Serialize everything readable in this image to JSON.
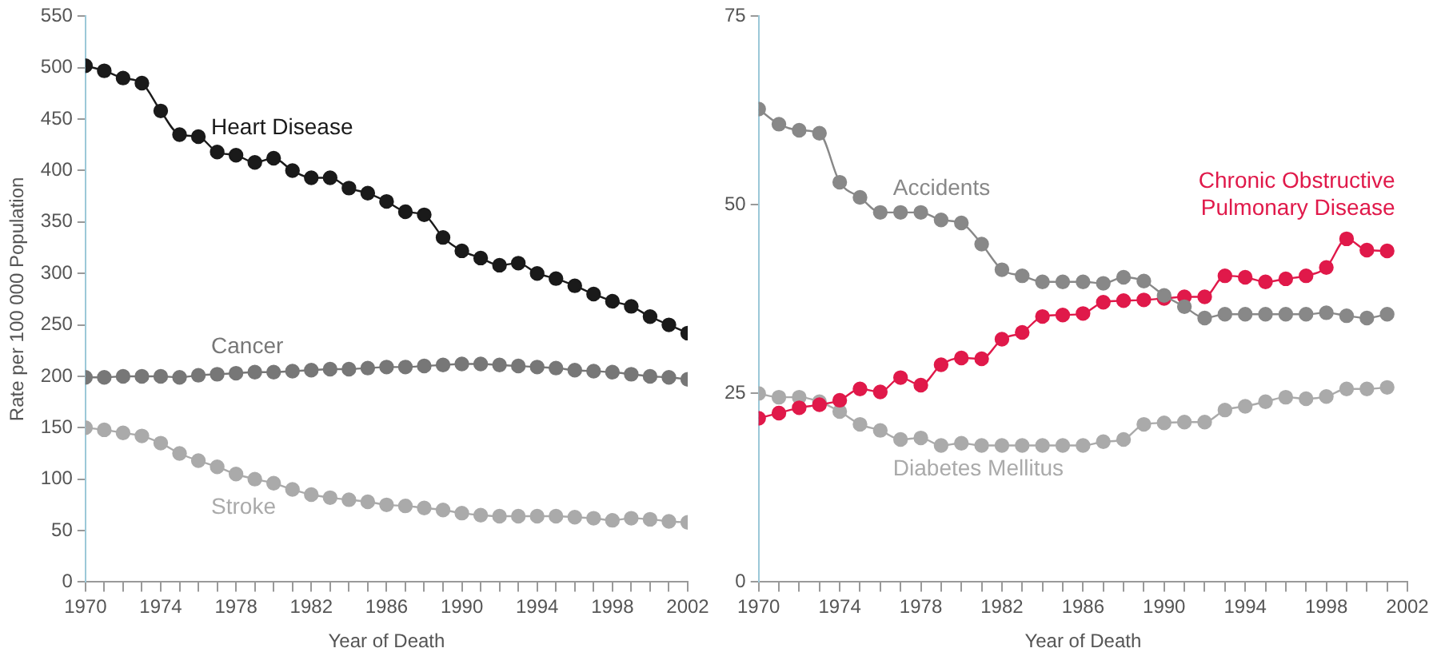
{
  "chart_data": [
    {
      "type": "line",
      "xlabel": "Year of Death",
      "ylabel": "Rate per 100 000 Population",
      "marker": "circle",
      "line_style": "solid",
      "grid": false,
      "legend": false,
      "x": [
        1970,
        1971,
        1972,
        1973,
        1974,
        1975,
        1976,
        1977,
        1978,
        1979,
        1980,
        1981,
        1982,
        1983,
        1984,
        1985,
        1986,
        1987,
        1988,
        1989,
        1990,
        1991,
        1992,
        1993,
        1994,
        1995,
        1996,
        1997,
        1998,
        1999,
        2000,
        2001,
        2002
      ],
      "xlim": [
        1970,
        2002
      ],
      "xticks": [
        1970,
        {
          "value": 1971,
          "label": null
        },
        {
          "value": 1972,
          "label": null
        },
        {
          "value": 1973,
          "label": null
        },
        1974,
        {
          "value": 1975,
          "label": null
        },
        {
          "value": 1976,
          "label": null
        },
        {
          "value": 1977,
          "label": null
        },
        1978,
        {
          "value": 1979,
          "label": null
        },
        {
          "value": 1980,
          "label": null
        },
        {
          "value": 1981,
          "label": null
        },
        1982,
        {
          "value": 1983,
          "label": null
        },
        {
          "value": 1984,
          "label": null
        },
        {
          "value": 1985,
          "label": null
        },
        1986,
        {
          "value": 1987,
          "label": null
        },
        {
          "value": 1988,
          "label": null
        },
        {
          "value": 1989,
          "label": null
        },
        1990,
        {
          "value": 1991,
          "label": null
        },
        {
          "value": 1992,
          "label": null
        },
        {
          "value": 1993,
          "label": null
        },
        1994,
        {
          "value": 1995,
          "label": null
        },
        {
          "value": 1996,
          "label": null
        },
        {
          "value": 1997,
          "label": null
        },
        1998,
        {
          "value": 1999,
          "label": null
        },
        {
          "value": 2000,
          "label": null
        },
        {
          "value": 2001,
          "label": null
        },
        2002
      ],
      "ylim": [
        0,
        550
      ],
      "yticks": [
        0,
        50,
        100,
        150,
        200,
        250,
        300,
        350,
        400,
        450,
        500,
        550
      ],
      "series": [
        {
          "name": "Heart Disease",
          "color": "#1a1a1a",
          "values": [
            502,
            497,
            490,
            485,
            458,
            435,
            433,
            418,
            415,
            408,
            412,
            400,
            393,
            393,
            383,
            378,
            370,
            360,
            357,
            335,
            322,
            315,
            308,
            310,
            300,
            295,
            288,
            280,
            273,
            268,
            258,
            250,
            242
          ]
        },
        {
          "name": "Cancer",
          "color": "#777777",
          "values": [
            199,
            199,
            200,
            200,
            200,
            199,
            201,
            202,
            203,
            204,
            204,
            205,
            206,
            207,
            207,
            208,
            209,
            209,
            210,
            211,
            212,
            212,
            211,
            210,
            209,
            208,
            206,
            205,
            204,
            202,
            200,
            199,
            197
          ]
        },
        {
          "name": "Stroke",
          "color": "#aaaaaa",
          "values": [
            150,
            148,
            145,
            142,
            135,
            125,
            118,
            112,
            105,
            100,
            96,
            90,
            85,
            82,
            80,
            78,
            75,
            74,
            72,
            70,
            67,
            65,
            64,
            64,
            64,
            64,
            63,
            62,
            60,
            62,
            61,
            59,
            58
          ]
        }
      ]
    },
    {
      "type": "line",
      "xlabel": "Year of Death",
      "marker": "circle",
      "line_style": "solid",
      "grid": false,
      "legend": false,
      "x": [
        1970,
        1971,
        1972,
        1973,
        1974,
        1975,
        1976,
        1977,
        1978,
        1979,
        1980,
        1981,
        1982,
        1983,
        1984,
        1985,
        1986,
        1987,
        1988,
        1989,
        1990,
        1991,
        1992,
        1993,
        1994,
        1995,
        1996,
        1997,
        1998,
        1999,
        2000,
        2001
      ],
      "xlim": [
        1970,
        2002
      ],
      "xticks": [
        1970,
        {
          "value": 1971,
          "label": null
        },
        {
          "value": 1972,
          "label": null
        },
        {
          "value": 1973,
          "label": null
        },
        1974,
        {
          "value": 1975,
          "label": null
        },
        {
          "value": 1976,
          "label": null
        },
        {
          "value": 1977,
          "label": null
        },
        1978,
        {
          "value": 1979,
          "label": null
        },
        {
          "value": 1980,
          "label": null
        },
        {
          "value": 1981,
          "label": null
        },
        1982,
        {
          "value": 1983,
          "label": null
        },
        {
          "value": 1984,
          "label": null
        },
        {
          "value": 1985,
          "label": null
        },
        1986,
        {
          "value": 1987,
          "label": null
        },
        {
          "value": 1988,
          "label": null
        },
        {
          "value": 1989,
          "label": null
        },
        1990,
        {
          "value": 1991,
          "label": null
        },
        {
          "value": 1992,
          "label": null
        },
        {
          "value": 1993,
          "label": null
        },
        1994,
        {
          "value": 1995,
          "label": null
        },
        {
          "value": 1996,
          "label": null
        },
        {
          "value": 1997,
          "label": null
        },
        1998,
        {
          "value": 1999,
          "label": null
        },
        {
          "value": 2000,
          "label": null
        },
        {
          "value": 2001,
          "label": null
        },
        2002
      ],
      "ylim": [
        0,
        75
      ],
      "yticks": [
        0,
        25,
        50,
        75
      ],
      "series": [
        {
          "name": "Accidents",
          "color": "#888888",
          "values": [
            62.7,
            60.7,
            59.9,
            59.5,
            53,
            51,
            49,
            49,
            49,
            48,
            47.6,
            44.8,
            41.4,
            40.6,
            39.8,
            39.8,
            39.8,
            39.6,
            40.4,
            39.9,
            38,
            36.5,
            35,
            35.5,
            35.5,
            35.5,
            35.5,
            35.5,
            35.7,
            35.3,
            35,
            35.5
          ]
        },
        {
          "name": "Chronic Obstructive Pulmonary Disease",
          "color": "#e0194a",
          "values": [
            21.7,
            22.4,
            23.1,
            23.5,
            24.1,
            25.6,
            25.2,
            27.1,
            26.1,
            28.8,
            29.7,
            29.6,
            32.2,
            33.1,
            35.2,
            35.4,
            35.6,
            37.1,
            37.3,
            37.4,
            37.6,
            37.8,
            37.8,
            40.6,
            40.4,
            39.8,
            40.2,
            40.6,
            41.7,
            45.5,
            44,
            43.9
          ]
        },
        {
          "name": "Diabetes Mellitus",
          "color": "#aaaaaa",
          "values": [
            25,
            24.5,
            24.5,
            23.9,
            22.6,
            20.9,
            20.1,
            18.9,
            19.1,
            18.1,
            18.4,
            18.1,
            18.1,
            18.1,
            18.1,
            18.1,
            18.1,
            18.6,
            18.9,
            20.9,
            21.1,
            21.2,
            21.2,
            22.8,
            23.3,
            23.9,
            24.5,
            24.3,
            24.6,
            25.6,
            25.6,
            25.8
          ]
        }
      ]
    }
  ]
}
